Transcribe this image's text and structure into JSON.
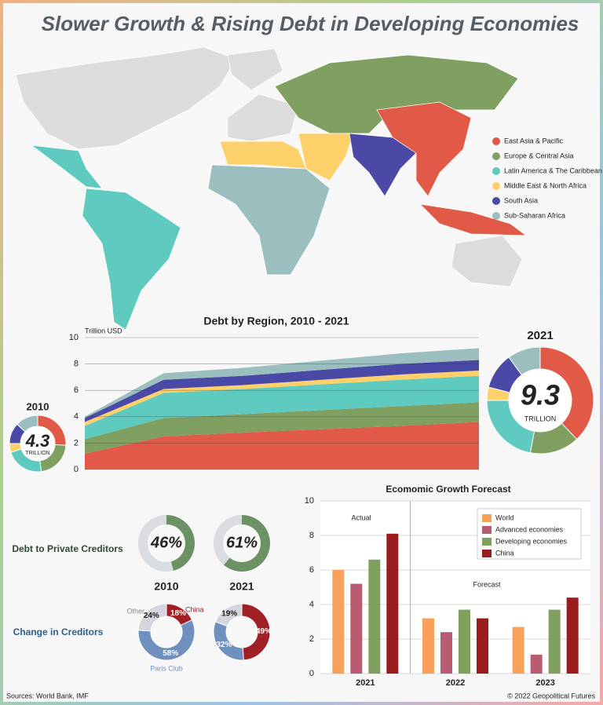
{
  "title": "Slower Growth & Rising Debt in Developing Economies",
  "map": {
    "legend": [
      {
        "name": "East Asia & Pacific",
        "color": "#e05a47"
      },
      {
        "name": "Europe & Central Asia",
        "color": "#7fa060"
      },
      {
        "name": "Latin America & The Caribbean",
        "color": "#5fcac0"
      },
      {
        "name": "Middle East & North Africa",
        "color": "#fdd06a"
      },
      {
        "name": "South Asia",
        "color": "#4a49a6"
      },
      {
        "name": "Sub-Saharan Africa",
        "color": "#9bbfbf"
      }
    ]
  },
  "chart_data": [
    {
      "type": "area",
      "title": "Debt by Region, 2010 - 2021",
      "y_label": "Trillion USD",
      "categories": [
        null,
        null,
        null,
        null,
        null,
        null
      ],
      "series": [
        {
          "color": "#e05a47",
          "values": [
            1.2,
            2.5,
            2.8,
            3.05,
            3.3,
            3.6
          ]
        },
        {
          "color": "#7fa060",
          "values": [
            1.1,
            1.4,
            1.4,
            1.45,
            1.5,
            1.5
          ]
        },
        {
          "color": "#5fcac0",
          "values": [
            1.0,
            1.9,
            1.9,
            1.95,
            2.0,
            2.0
          ]
        },
        {
          "color": "#fdd06a",
          "values": [
            0.3,
            0.3,
            0.3,
            0.35,
            0.4,
            0.4
          ]
        },
        {
          "color": "#4a49a6",
          "values": [
            0.3,
            0.7,
            0.7,
            0.75,
            0.8,
            0.8
          ]
        },
        {
          "color": "#9bbfbf",
          "values": [
            0.1,
            0.5,
            0.6,
            0.7,
            0.8,
            0.9
          ]
        }
      ],
      "ylim": [
        0,
        10
      ],
      "yticks": [
        0,
        2,
        4,
        6,
        8,
        10
      ],
      "grid": true
    },
    {
      "type": "donut",
      "title": "2010",
      "total": 4.3,
      "total_unit": "TRILLION",
      "values": [
        26,
        22,
        22,
        5,
        12,
        13
      ],
      "colors": [
        "#e05a47",
        "#7fa060",
        "#5fcac0",
        "#fdd06a",
        "#4a49a6",
        "#9bbfbf"
      ]
    },
    {
      "type": "donut",
      "title": "2021",
      "total": 9.3,
      "total_unit": "TRILLION",
      "values": [
        38,
        15,
        22,
        4,
        11,
        10
      ],
      "colors": [
        "#e05a47",
        "#7fa060",
        "#5fcac0",
        "#fdd06a",
        "#4a49a6",
        "#9bbfbf"
      ]
    },
    {
      "type": "gauge",
      "title": "Debt to Private Creditors",
      "categories": [
        "2010",
        "2021"
      ],
      "values": [
        46,
        61
      ],
      "value_labels": [
        "46%",
        "61%"
      ],
      "color": "#6b9165",
      "track_color": "#d9dde2"
    },
    {
      "type": "pie",
      "title": "Change in Creditors",
      "segments": [
        "China",
        "Paris Club",
        "Other"
      ],
      "colors": [
        "#a02025",
        "#6f8fbf",
        "#d3d7dd"
      ],
      "series": [
        {
          "values": [
            18,
            58,
            24
          ],
          "value_labels": [
            "18%",
            "58%",
            "24%"
          ]
        },
        {
          "values": [
            49,
            32,
            19
          ],
          "value_labels": [
            "49%",
            "32%",
            "19%"
          ]
        }
      ]
    },
    {
      "type": "bar",
      "title": "Ecomomic Growth Forecast",
      "categories": [
        "2021",
        "2022",
        "2023"
      ],
      "series": [
        {
          "name": "World",
          "color": "#f9a15a",
          "values": [
            6.0,
            3.2,
            2.7
          ]
        },
        {
          "name": "Advanced economies",
          "color": "#b85c72",
          "values": [
            5.2,
            2.4,
            1.1
          ]
        },
        {
          "name": "Developing economies",
          "color": "#7fa05e",
          "values": [
            6.6,
            3.7,
            3.7
          ]
        },
        {
          "name": "China",
          "color": "#9b1c1f",
          "values": [
            8.1,
            3.2,
            4.4
          ]
        }
      ],
      "annotations": [
        "Actual",
        "Forecast"
      ],
      "ylim": [
        0,
        10
      ],
      "yticks": [
        0,
        2,
        4,
        6,
        8,
        10
      ],
      "grid": true
    }
  ],
  "sources": "Sources: World Bank, IMF",
  "copyright": "© 2022 Geopolitical Futures"
}
